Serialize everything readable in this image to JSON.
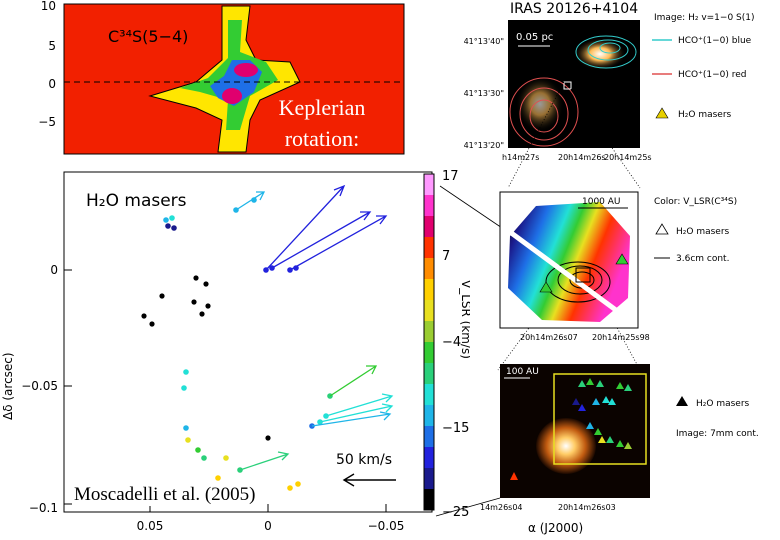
{
  "pv": {
    "molecule": "C³⁴S(5−4)",
    "yticks": [
      "10",
      "5",
      "0",
      "−5"
    ],
    "overlay": "Keplerian rotation:"
  },
  "masers": {
    "title": "H₂O masers",
    "ylabel": "Δδ (arcsec)",
    "yticks": [
      "0",
      "−0.05",
      "−0.1"
    ],
    "xticks": [
      "0.05",
      "0",
      "−0.05"
    ],
    "cbar_label": "V_LSR (km/s)",
    "cbar_ticks": [
      "17",
      "7",
      "−4",
      "−15",
      "−25"
    ],
    "scale_label": "50 km/s",
    "credit": "Moscadelli et al. (2005)",
    "cbar_colors": [
      "#000000",
      "#1a1a8c",
      "#2222dd",
      "#1e6fe6",
      "#1fb5e8",
      "#22e0d6",
      "#2ad07a",
      "#33cc33",
      "#9acd32",
      "#e8e020",
      "#ffd000",
      "#ff8c00",
      "#ff3300",
      "#e0006e",
      "#ff33cc",
      "#ff99ff"
    ]
  },
  "iras": {
    "title": "IRAS 20126+4104",
    "scale_label": "0.05 pc",
    "dec_ticks": [
      "41°13'40\"",
      "41°13'30\"",
      "41°13'20\""
    ],
    "ra_ticks": [
      "h14m27s",
      "20h14m26s",
      "20h14m25s"
    ],
    "legend": [
      "Image: H₂ v=1−0 S(1)",
      "HCO⁺(1−0) blue",
      "HCO⁺(1−0) red",
      "H₂O masers"
    ],
    "legend_colors": [
      "#000000",
      "#33cccc",
      "#e05050",
      "#e8d000"
    ]
  },
  "mid": {
    "scale_label": "1000 AU",
    "ra_ticks": [
      "20h14m26s07",
      "20h14m25s98"
    ],
    "legend": [
      "Color: V_LSR(C³⁴S)",
      "H₂O masers",
      "3.6cm cont."
    ]
  },
  "bottom": {
    "scale_label": "100 AU",
    "ra_ticks": [
      "14m26s04",
      "20h14m26s03"
    ],
    "xlabel": "α (J2000)",
    "legend": [
      "H₂O masers",
      "Image: 7mm cont."
    ]
  }
}
